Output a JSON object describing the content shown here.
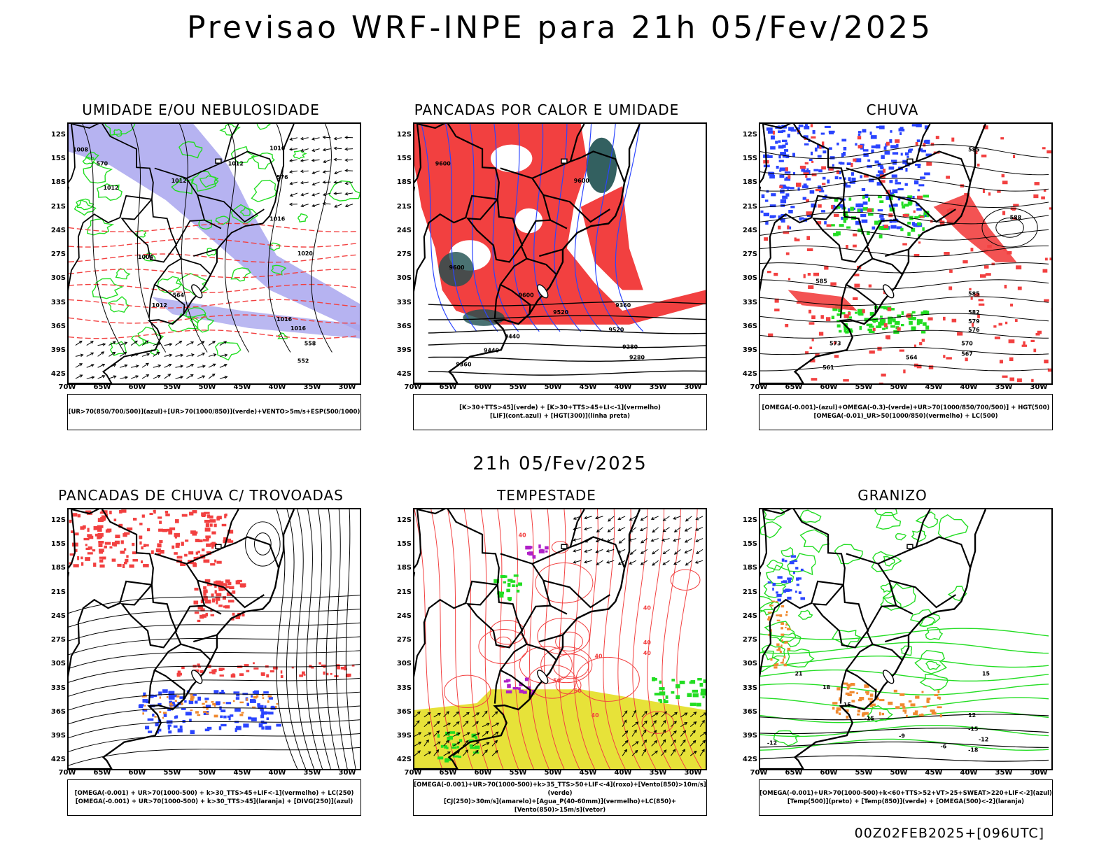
{
  "header": {
    "title": "Previsao WRF-INPE  para 21h 05/Fev/2025",
    "subtitle": "21h 05/Fev/2025",
    "run_stamp": "00Z02FEB2025+[096UTC]"
  },
  "axes": {
    "lat_labels": [
      "12S",
      "15S",
      "18S",
      "21S",
      "24S",
      "27S",
      "30S",
      "33S",
      "36S",
      "39S",
      "42S"
    ],
    "lon_labels": [
      "70W",
      "65W",
      "60W",
      "55W",
      "50W",
      "45W",
      "40W",
      "35W",
      "30W"
    ]
  },
  "colors": {
    "lavender": "#a9a6ee",
    "green": "#22dd22",
    "red": "#f24040",
    "dark_teal": "#1d4f4f",
    "blue": "#2a44ff",
    "yellow": "#e6e02e",
    "orange": "#f08a30",
    "purple": "#b020c8"
  },
  "panels": [
    {
      "title": "UMIDADE E/OU NEBULOSIDADE",
      "legend": [
        "[UR>70(850/700/500)](azul)+[UR>70(1000/850)](verde)+VENTO>5m/s+ESP(500/1000)"
      ],
      "labels": [
        "1008",
        "1012",
        "1012",
        "1012",
        "1016",
        "1016",
        "1004",
        "1012",
        "1016",
        "1016",
        "1020",
        "576",
        "570",
        "564",
        "558",
        "552"
      ]
    },
    {
      "title": "PANCADAS POR CALOR E UMIDADE",
      "legend": [
        "[K>30+TTS>45](verde) + [K>30+TTS>45+LI<-1](vermelho)",
        "[LIF](cont.azul) + [HGT(300)](linha preta)"
      ],
      "labels": [
        "9600",
        "9600",
        "9600",
        "9600",
        "9520",
        "9440",
        "9440",
        "9360",
        "9280",
        "9280",
        "9520",
        "9360"
      ]
    },
    {
      "title": "CHUVA",
      "legend": [
        "[OMEGA(-0.001)-(azul)+OMEGA(-0.3)-(verde)+UR>70(1000/850/700/500)] + HGT(500)",
        "[OMEGA(-0.01)_UR>50(1000/850)(vermelho) + LC(500)"
      ],
      "labels": [
        "585",
        "588",
        "585",
        "585",
        "582",
        "579",
        "576",
        "573",
        "570",
        "567",
        "564",
        "561"
      ]
    },
    {
      "title": "PANCADAS DE CHUVA C/ TROVOADAS",
      "legend": [
        "[OMEGA(-0.001) + UR>70(1000-500) + k>30_TTS>45+LIF<-1](vermelho) + LC(250)",
        "[OMEGA(-0.001) + UR>70(1000-500) + k>30_TTS>45](laranja) + [DIVG(250)](azul)"
      ],
      "labels": []
    },
    {
      "title": "TEMPESTADE",
      "legend": [
        "[OMEGA(-0.001)+UR>70(1000-500)+k>35_TTS>50+LIF<-4](roxo)+[Vento(850)>10m/s](verde)",
        "[CJ(250)>30m/s](amarelo)+[Agua_P(40-60mm)](vermelho)+LC(850)+[Vento(850)>15m/s](vetor)"
      ],
      "labels": [
        "40",
        "40",
        "40",
        "40",
        "40",
        "50",
        "50",
        "40"
      ]
    },
    {
      "title": "GRANIZO",
      "legend": [
        "[OMEGA(-0.001)+UR>70(1000-500)+k<60+TTS>52+VT>25+SWEAT>220+LIF<-2](azul)",
        "[Temp(500)](preto) + [Temp(850)](verde) + [OMEGA(500)<-2](laranja)"
      ],
      "labels": [
        "-12",
        "-12",
        "-15",
        "-15",
        "-18",
        "21",
        "18",
        "15",
        "15",
        "12",
        "-9",
        "-6"
      ]
    }
  ]
}
